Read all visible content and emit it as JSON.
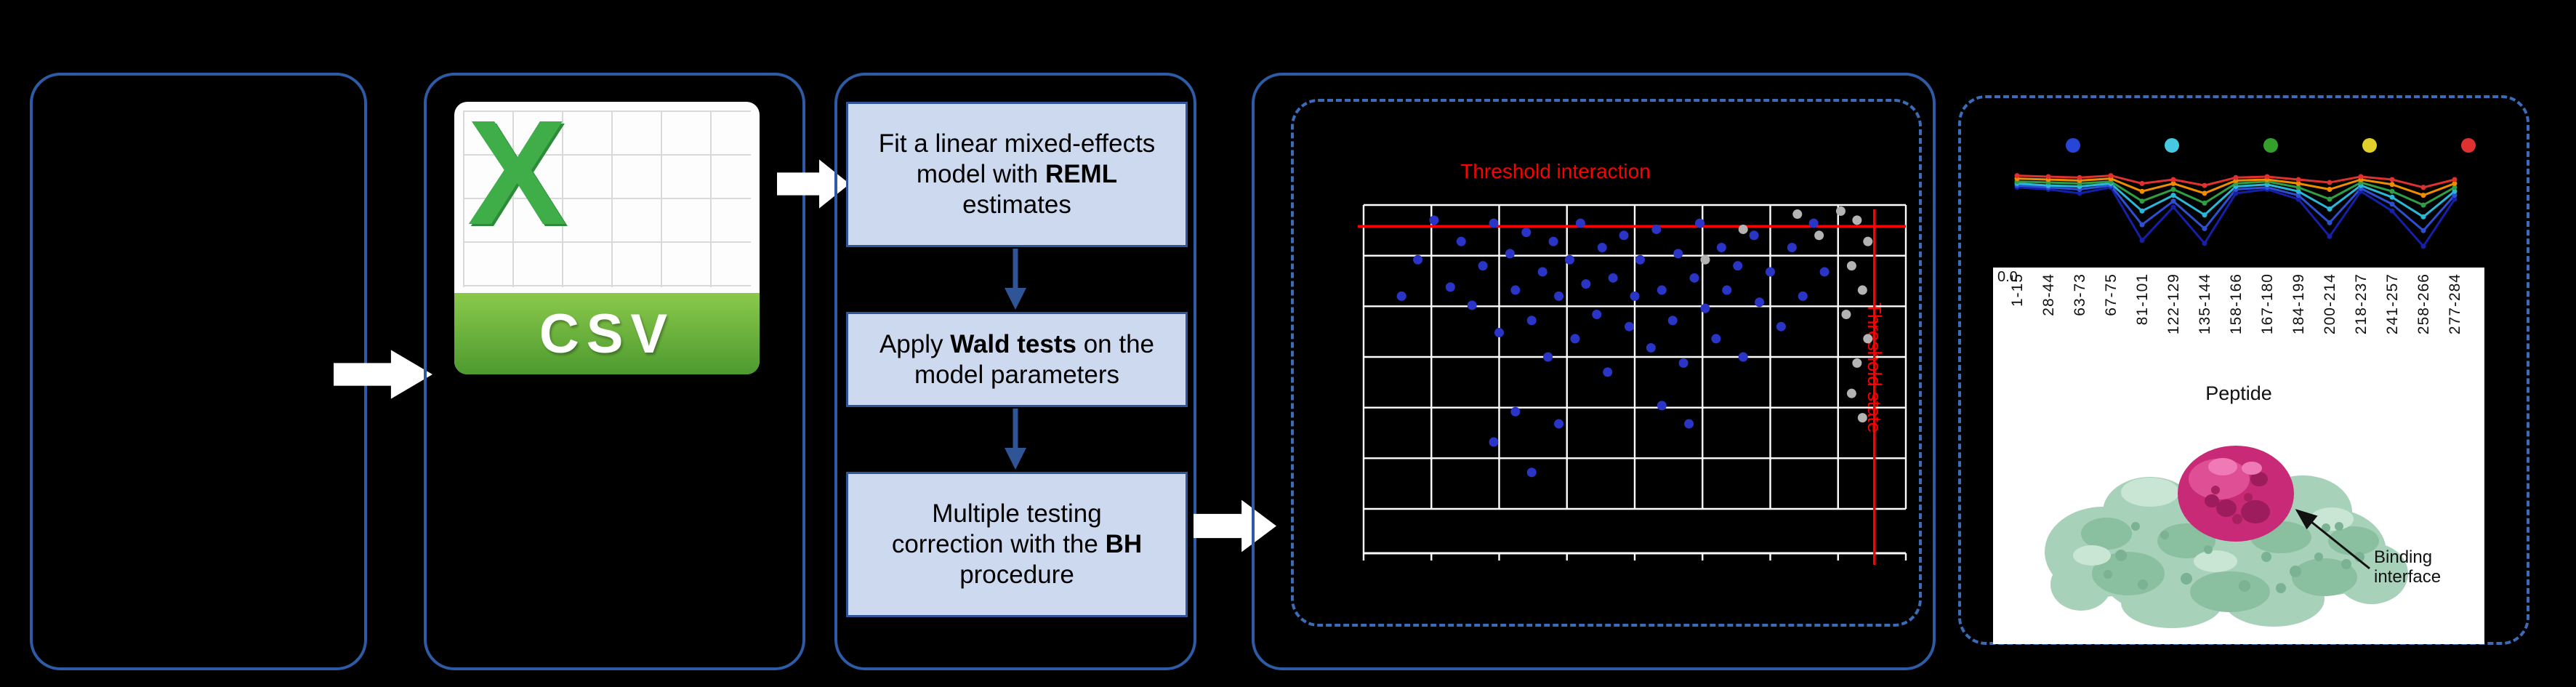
{
  "colors": {
    "background": "#000000",
    "panel_border": "#2d5ba6",
    "dashed_border": "#3a6cb8",
    "step_box_fill": "#ccd9ef",
    "step_box_border": "#2f5597",
    "flow_arrow": "#ffffff",
    "threshold_red": "#ff0000",
    "csv_green_light": "#8bc94c",
    "csv_green_dark": "#4d9a2f",
    "excel_x_green": "#3fae49",
    "protein_surface": "#a8d1ba",
    "binding_patch": "#c92a78"
  },
  "csv_icon": {
    "x_label": "X",
    "csv_label": "CSV"
  },
  "workflow": {
    "steps": [
      {
        "pre": "Fit a linear mixed-effects model with ",
        "bold": "REML",
        "post": " estimates"
      },
      {
        "pre": "Apply ",
        "bold": "Wald tests",
        "post": " on the model parameters"
      },
      {
        "pre": "Multiple testing correction with the ",
        "bold": "BH",
        "post": " procedure"
      }
    ]
  },
  "annotations": {
    "threshold_interaction": "Threshold interaction",
    "threshold_state": "Threshold state",
    "uptake_y_tick": "0.0",
    "peptide_axis": "Peptide",
    "binding_interface": "Binding interface"
  },
  "chart_data": [
    {
      "type": "scatter",
      "grid": {
        "cols": 8,
        "rows": 6
      },
      "thresholds": {
        "h_frac": 0.07,
        "v_frac": 0.942,
        "h_label": "Threshold interaction",
        "v_label": "Threshold state",
        "color": "#ff0000"
      },
      "series": [
        {
          "name": "significant-peptides",
          "color": "#2a35c8",
          "points": [
            [
              0.07,
              0.3
            ],
            [
              0.1,
              0.18
            ],
            [
              0.13,
              0.05
            ],
            [
              0.16,
              0.27
            ],
            [
              0.18,
              0.12
            ],
            [
              0.2,
              0.33
            ],
            [
              0.22,
              0.2
            ],
            [
              0.24,
              0.06
            ],
            [
              0.25,
              0.42
            ],
            [
              0.27,
              0.16
            ],
            [
              0.28,
              0.28
            ],
            [
              0.3,
              0.09
            ],
            [
              0.31,
              0.38
            ],
            [
              0.33,
              0.22
            ],
            [
              0.34,
              0.5
            ],
            [
              0.35,
              0.12
            ],
            [
              0.36,
              0.3
            ],
            [
              0.38,
              0.18
            ],
            [
              0.39,
              0.44
            ],
            [
              0.4,
              0.06
            ],
            [
              0.41,
              0.26
            ],
            [
              0.43,
              0.36
            ],
            [
              0.44,
              0.14
            ],
            [
              0.45,
              0.55
            ],
            [
              0.46,
              0.24
            ],
            [
              0.48,
              0.1
            ],
            [
              0.49,
              0.4
            ],
            [
              0.5,
              0.3
            ],
            [
              0.51,
              0.18
            ],
            [
              0.53,
              0.47
            ],
            [
              0.54,
              0.08
            ],
            [
              0.55,
              0.28
            ],
            [
              0.57,
              0.38
            ],
            [
              0.58,
              0.16
            ],
            [
              0.59,
              0.52
            ],
            [
              0.61,
              0.24
            ],
            [
              0.62,
              0.06
            ],
            [
              0.63,
              0.34
            ],
            [
              0.65,
              0.44
            ],
            [
              0.66,
              0.14
            ],
            [
              0.67,
              0.28
            ],
            [
              0.69,
              0.2
            ],
            [
              0.7,
              0.5
            ],
            [
              0.72,
              0.1
            ],
            [
              0.73,
              0.32
            ],
            [
              0.75,
              0.22
            ],
            [
              0.77,
              0.4
            ],
            [
              0.79,
              0.14
            ],
            [
              0.81,
              0.3
            ],
            [
              0.83,
              0.06
            ],
            [
              0.85,
              0.22
            ],
            [
              0.28,
              0.68
            ],
            [
              0.31,
              0.88
            ],
            [
              0.36,
              0.72
            ],
            [
              0.24,
              0.78
            ],
            [
              0.55,
              0.66
            ],
            [
              0.6,
              0.72
            ]
          ]
        },
        {
          "name": "non-significant-peptides",
          "color": "#b3b3b3",
          "points": [
            [
              0.88,
              0.02
            ],
            [
              0.91,
              0.05
            ],
            [
              0.93,
              0.12
            ],
            [
              0.9,
              0.2
            ],
            [
              0.92,
              0.28
            ],
            [
              0.89,
              0.36
            ],
            [
              0.93,
              0.44
            ],
            [
              0.91,
              0.52
            ],
            [
              0.9,
              0.62
            ],
            [
              0.92,
              0.7
            ],
            [
              0.8,
              0.03
            ],
            [
              0.84,
              0.1
            ],
            [
              0.63,
              0.18
            ],
            [
              0.7,
              0.08
            ]
          ]
        }
      ]
    },
    {
      "type": "line",
      "xlabel": "Peptide",
      "y_tick_labels": [
        "0.0"
      ],
      "categories": [
        "1-15",
        "28-44",
        "63-73",
        "67-75",
        "81-101",
        "122-129",
        "135-144",
        "158-166",
        "167-180",
        "184-199",
        "200-214",
        "218-237",
        "241-257",
        "258-266",
        "277-284"
      ],
      "legend_dot_colors": [
        "#2746d8",
        "#45c8e0",
        "#33a02c",
        "#e3cf2a",
        "#e03131"
      ],
      "series": [
        {
          "name": "line-1",
          "color": "#151fa8",
          "values": [
            0.72,
            0.7,
            0.66,
            0.72,
            0.18,
            0.52,
            0.15,
            0.66,
            0.7,
            0.6,
            0.22,
            0.68,
            0.48,
            0.12,
            0.6
          ]
        },
        {
          "name": "line-2",
          "color": "#2e4fd0",
          "values": [
            0.74,
            0.72,
            0.7,
            0.74,
            0.34,
            0.58,
            0.3,
            0.7,
            0.72,
            0.64,
            0.36,
            0.71,
            0.55,
            0.28,
            0.64
          ]
        },
        {
          "name": "line-3",
          "color": "#2bb8d8",
          "values": [
            0.76,
            0.74,
            0.73,
            0.76,
            0.48,
            0.64,
            0.44,
            0.73,
            0.75,
            0.68,
            0.5,
            0.74,
            0.62,
            0.42,
            0.68
          ]
        },
        {
          "name": "line-4",
          "color": "#2f9e44",
          "values": [
            0.78,
            0.77,
            0.76,
            0.78,
            0.58,
            0.7,
            0.56,
            0.76,
            0.78,
            0.72,
            0.6,
            0.77,
            0.68,
            0.54,
            0.72
          ]
        },
        {
          "name": "line-5",
          "color": "#f08c00",
          "values": [
            0.81,
            0.8,
            0.79,
            0.81,
            0.68,
            0.76,
            0.66,
            0.79,
            0.8,
            0.76,
            0.7,
            0.8,
            0.75,
            0.64,
            0.76
          ]
        },
        {
          "name": "line-6",
          "color": "#e03131",
          "values": [
            0.84,
            0.83,
            0.82,
            0.84,
            0.76,
            0.8,
            0.74,
            0.82,
            0.83,
            0.8,
            0.77,
            0.83,
            0.8,
            0.72,
            0.8
          ]
        }
      ]
    }
  ]
}
